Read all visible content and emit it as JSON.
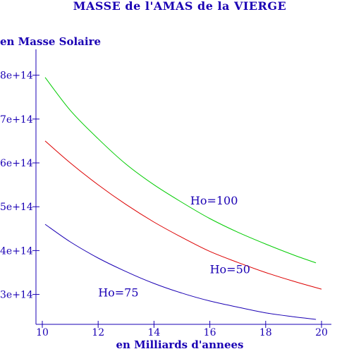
{
  "chart_data": {
    "type": "line",
    "title": "MASSE de l'AMAS de la VIERGE",
    "ylabel": "en Masse Solaire",
    "xlabel": "en Milliards d'annees",
    "xlim": [
      10,
      20
    ],
    "ylim": [
      235000000000000.0,
      830000000000000.0
    ],
    "x_ticks": [
      10,
      12,
      14,
      16,
      18,
      20
    ],
    "x_tick_labels": [
      "10",
      "12",
      "14",
      "16",
      "18",
      "20"
    ],
    "y_ticks": [
      300000000000000.0,
      400000000000000.0,
      500000000000000.0,
      600000000000000.0,
      700000000000000.0,
      800000000000000.0
    ],
    "y_tick_labels": [
      "3e+14",
      "4e+14",
      "5e+14",
      "6e+14",
      "7e+14",
      "8e+14"
    ],
    "grid": false,
    "axis_color": "#1a00b4",
    "series": [
      {
        "name": "Ho=100",
        "color": "#00cc00",
        "x": [
          10.1,
          11,
          12,
          13,
          14,
          15,
          16,
          17,
          18,
          19,
          19.8
        ],
        "y": [
          795000000000000.0,
          720000000000000.0,
          655000000000000.0,
          597000000000000.0,
          550000000000000.0,
          510000000000000.0,
          473000000000000.0,
          442000000000000.0,
          415000000000000.0,
          390000000000000.0,
          372000000000000.0
        ]
      },
      {
        "name": "Ho=50",
        "color": "#dd0000",
        "x": [
          10.1,
          11,
          12,
          13,
          14,
          15,
          16,
          17,
          18,
          19,
          20
        ],
        "y": [
          650000000000000.0,
          600000000000000.0,
          550000000000000.0,
          505000000000000.0,
          465000000000000.0,
          430000000000000.0,
          398000000000000.0,
          373000000000000.0,
          350000000000000.0,
          330000000000000.0,
          312000000000000.0
        ]
      },
      {
        "name": "Ho=75",
        "color": "#1a00b4",
        "x": [
          10.1,
          11,
          12,
          13,
          14,
          15,
          16,
          17,
          18,
          19,
          19.8
        ],
        "y": [
          460000000000000.0,
          420000000000000.0,
          383000000000000.0,
          352000000000000.0,
          325000000000000.0,
          303000000000000.0,
          285000000000000.0,
          271000000000000.0,
          258000000000000.0,
          249000000000000.0,
          243000000000000.0
        ]
      }
    ],
    "annotations": [
      {
        "text": "Ho=100",
        "x": 15.3,
        "y": 505000000000000.0
      },
      {
        "text": "Ho=50",
        "x": 16.0,
        "y": 348000000000000.0
      },
      {
        "text": "Ho=75",
        "x": 12.0,
        "y": 295000000000000.0
      }
    ]
  }
}
